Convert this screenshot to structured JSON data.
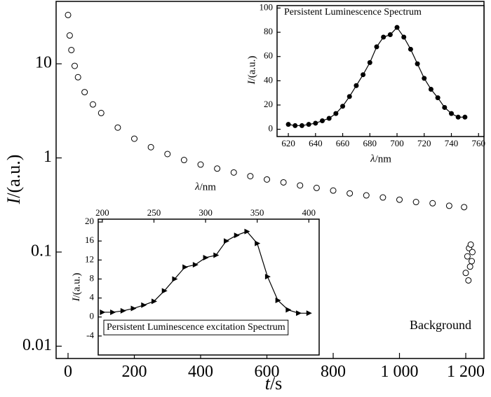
{
  "chart_data": [
    {
      "type": "scatter",
      "marker": "open-circle",
      "color": "#000000",
      "log_y": true,
      "xlabel": "t/s",
      "ylabel": "I/(a.u.)",
      "x": [
        0,
        5,
        10,
        20,
        30,
        50,
        75,
        100,
        150,
        200,
        250,
        300,
        350,
        400,
        450,
        500,
        550,
        600,
        650,
        700,
        750,
        800,
        850,
        900,
        950,
        1000,
        1050,
        1100,
        1150,
        1195,
        1200,
        1205,
        1208,
        1210,
        1213,
        1215,
        1218,
        1220
      ],
      "values": [
        33,
        20,
        14,
        9.5,
        7.2,
        5.0,
        3.7,
        3.0,
        2.1,
        1.6,
        1.3,
        1.1,
        0.95,
        0.85,
        0.77,
        0.7,
        0.64,
        0.59,
        0.55,
        0.51,
        0.48,
        0.45,
        0.42,
        0.4,
        0.38,
        0.36,
        0.34,
        0.33,
        0.31,
        0.3,
        0.06,
        0.09,
        0.05,
        0.11,
        0.07,
        0.12,
        0.08,
        0.1
      ],
      "xlim": [
        -36,
        1255
      ],
      "ylim": [
        0.0074,
        46
      ],
      "xticks": [
        0,
        200,
        400,
        600,
        800,
        {
          "value": 1000,
          "label": "1 000"
        },
        {
          "value": 1200,
          "label": "1 200"
        }
      ],
      "yticks": [
        0.01,
        0.1,
        1,
        10
      ],
      "annotation": "Background"
    },
    {
      "type": "line",
      "marker": "filled-circle",
      "color": "#000000",
      "title": "Persistent Luminescence Spectrum",
      "xlabel": "λ/nm",
      "ylabel": "I/(a.u.)",
      "x": [
        620,
        625,
        630,
        635,
        640,
        645,
        650,
        655,
        660,
        665,
        670,
        675,
        680,
        685,
        690,
        695,
        700,
        705,
        710,
        715,
        720,
        725,
        730,
        735,
        740,
        745,
        750
      ],
      "values": [
        4,
        3,
        3,
        4,
        5,
        7,
        9,
        13,
        19,
        27,
        36,
        45,
        55,
        68,
        76,
        78,
        84,
        76,
        66,
        54,
        42,
        33,
        26,
        18,
        13,
        10,
        10
      ],
      "xlim": [
        611.7,
        764
      ],
      "ylim": [
        -6,
        102
      ],
      "xticks": [
        620,
        640,
        660,
        680,
        700,
        720,
        740,
        760
      ],
      "yticks": [
        0,
        20,
        40,
        60,
        80,
        100
      ]
    },
    {
      "type": "line",
      "marker": "triangle-right",
      "color": "#000000",
      "xaxis_position": "top",
      "title": "Persistent Luminescence excitation Spectrum",
      "xlabel": "λ/nm",
      "ylabel": "I/(a.u.)",
      "x": [
        200,
        210,
        220,
        230,
        240,
        250,
        260,
        270,
        280,
        290,
        300,
        310,
        320,
        330,
        340,
        350,
        360,
        370,
        380,
        390,
        400
      ],
      "values": [
        1,
        1,
        1.3,
        1.8,
        2.5,
        3.3,
        5.5,
        8,
        10.5,
        11,
        12.5,
        13,
        16,
        17.2,
        18,
        15.5,
        8.5,
        3.5,
        1.5,
        0.8,
        0.8
      ],
      "xlim": [
        196,
        410
      ],
      "ylim": [
        -8,
        20.6
      ],
      "xticks": [
        200,
        250,
        300,
        350,
        400
      ],
      "yticks": [
        -4,
        0,
        4,
        8,
        12,
        16,
        20
      ]
    }
  ]
}
